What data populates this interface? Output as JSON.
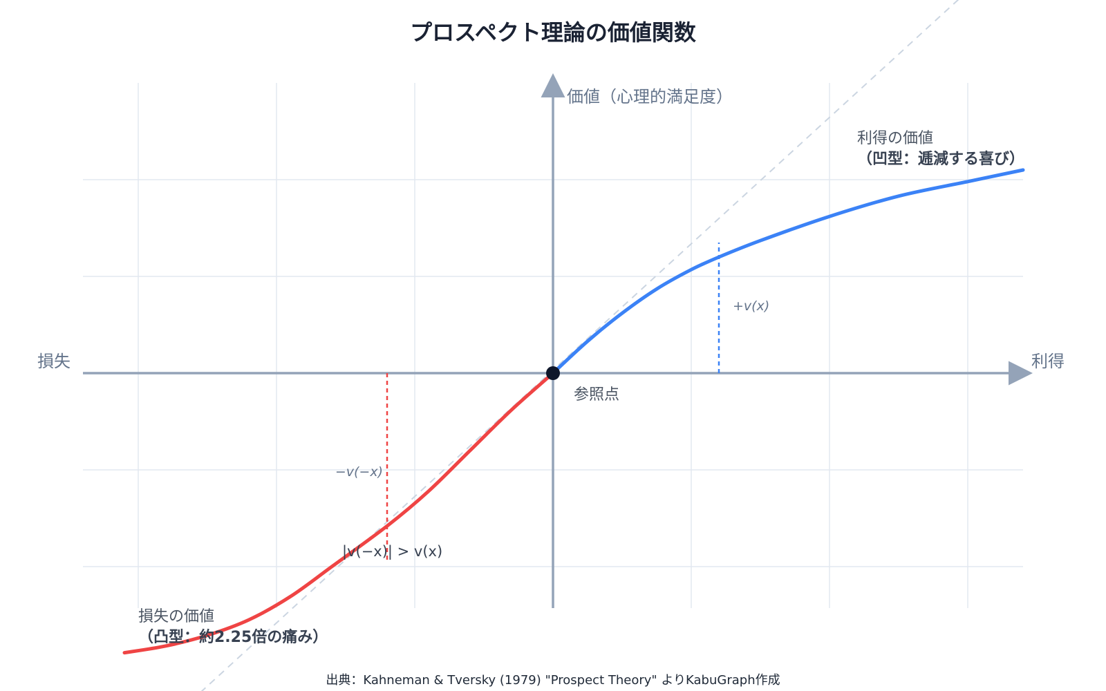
{
  "chart_data": {
    "type": "line",
    "title": "プロスペクト理論の価値関数",
    "ylabel": "価値（心理的満足度）",
    "xlabel_positive": "利得",
    "xlabel_negative": "損失",
    "reference_point_label": "参照点",
    "grid": true,
    "xlim": [
      -3.4,
      3.4
    ],
    "ylim": [
      -2.4,
      2.5
    ],
    "xticks": [
      -3,
      -2,
      -1,
      1,
      2,
      3
    ],
    "yticks": [
      -2,
      -1,
      1,
      2
    ],
    "series": [
      {
        "name": "利得の価値",
        "label_sub": "（凹型：逓減する喜び）",
        "color": "#3b82f6",
        "x": [
          0,
          0.25,
          0.5,
          0.75,
          1.0,
          1.2,
          1.5,
          2.0,
          2.5,
          3.0,
          3.4
        ],
        "y": [
          0,
          0.33,
          0.62,
          0.87,
          1.07,
          1.2,
          1.37,
          1.62,
          1.83,
          1.98,
          2.1
        ]
      },
      {
        "name": "損失の価値",
        "label_sub": "（凸型：約2.25倍の痛み）",
        "color": "#ef4444",
        "x": [
          -3.1,
          -2.8,
          -2.5,
          -2.2,
          -1.9,
          -1.6,
          -1.2,
          -0.9,
          -0.6,
          -0.3,
          0
        ],
        "y": [
          -2.89,
          -2.82,
          -2.71,
          -2.55,
          -2.31,
          -2.0,
          -1.58,
          -1.22,
          -0.8,
          -0.38,
          0
        ]
      },
      {
        "name": "",
        "style": "dashed-reference",
        "color": "#cbd5e1",
        "x": [
          -2.55,
          3.0
        ],
        "y": [
          -3.3,
          3.95
        ]
      }
    ],
    "annotations": [
      {
        "text": "+v(x)",
        "x": 1.2,
        "y_from": 0,
        "y_to": 1.35,
        "color": "#3b82f6"
      },
      {
        "text": "−v(−x)",
        "x": -1.2,
        "y_from": 0,
        "y_to": -1.95,
        "color": "#ef4444"
      },
      {
        "text": "|v(−x)| > v(x)"
      }
    ],
    "source": "出典：Kahneman & Tversky (1979) \"Prospect Theory\" よりKabuGraph作成"
  },
  "colors": {
    "axis": "#94a3b8",
    "grid": "#e2e8f0",
    "gain": "#3b82f6",
    "loss": "#ef4444",
    "reference": "#cbd5e1",
    "origin": "#0f172a"
  }
}
